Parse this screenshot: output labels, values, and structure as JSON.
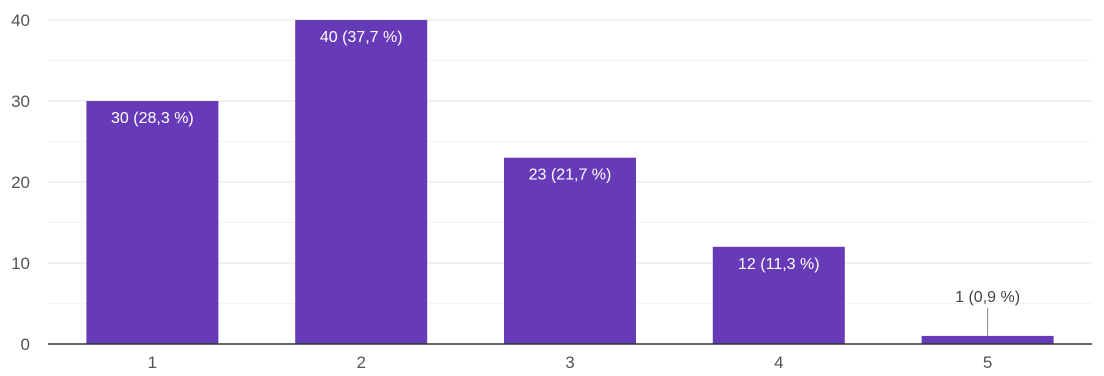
{
  "chart_data": {
    "type": "bar",
    "categories": [
      "1",
      "2",
      "3",
      "4",
      "5"
    ],
    "values": [
      30,
      40,
      23,
      12,
      1
    ],
    "data_labels": [
      "30 (28,3 %)",
      "40 (37,7 %)",
      "23 (21,7 %)",
      "12 (11,3 %)",
      "1 (0,9 %)"
    ],
    "y_ticks": [
      "0",
      "10",
      "20",
      "30",
      "40"
    ],
    "ylim": [
      0,
      40
    ],
    "grid": true,
    "bar_color": "#673ab7"
  }
}
